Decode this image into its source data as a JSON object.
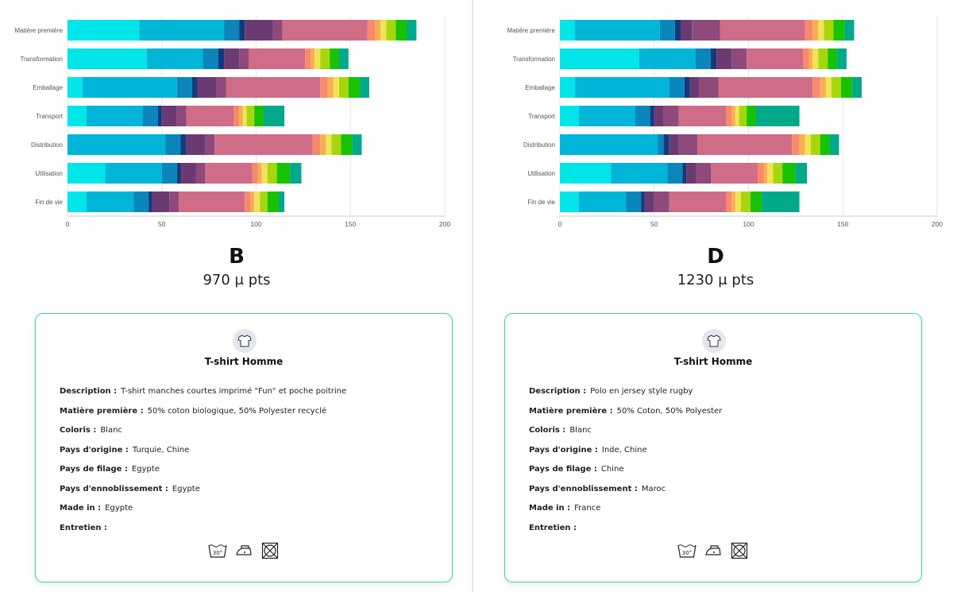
{
  "palette": [
    "#00e5e8",
    "#00b5d8",
    "#0a86bd",
    "#123b7a",
    "#6b3a73",
    "#8d4a7a",
    "#cf6c87",
    "#f7896d",
    "#f9ae54",
    "#f0e35a",
    "#a8d60d",
    "#18c200",
    "#00a98a"
  ],
  "chart_data": [
    {
      "type": "bar",
      "orientation": "horizontal",
      "stacked": true,
      "categories": [
        "Matière première",
        "Transformation",
        "Emballage",
        "Transport",
        "Distribution",
        "Utilisation",
        "Fin de vie"
      ],
      "xlim": [
        0,
        200
      ],
      "xticks": [
        0,
        50,
        100,
        150,
        200
      ],
      "grid": true,
      "segments": [
        [
          38,
          45,
          8,
          3,
          15,
          5,
          45,
          4,
          3,
          3,
          5,
          6,
          5
        ],
        [
          42,
          30,
          8,
          3,
          8,
          5,
          30,
          3,
          2,
          3,
          5,
          5,
          5
        ],
        [
          8,
          50,
          8,
          3,
          10,
          5,
          50,
          4,
          3,
          3,
          5,
          6,
          5
        ],
        [
          10,
          30,
          8,
          2,
          8,
          5,
          25,
          3,
          2,
          2,
          4,
          5,
          11
        ],
        [
          0,
          52,
          8,
          3,
          10,
          5,
          52,
          4,
          3,
          3,
          5,
          6,
          5
        ],
        [
          20,
          30,
          8,
          2,
          8,
          5,
          25,
          3,
          2,
          3,
          5,
          7,
          6
        ],
        [
          10,
          25,
          8,
          2,
          9,
          5,
          35,
          3,
          2,
          3,
          4,
          6,
          3
        ]
      ]
    },
    {
      "type": "bar",
      "orientation": "horizontal",
      "stacked": true,
      "categories": [
        "Matière première",
        "Transformation",
        "Emballage",
        "Transport",
        "Distribution",
        "Utilisation",
        "Fin de vie"
      ],
      "xlim": [
        0,
        200
      ],
      "xticks": [
        0,
        50,
        100,
        150,
        200
      ],
      "grid": true,
      "segments": [
        [
          8,
          45,
          8,
          3,
          6,
          15,
          45,
          4,
          3,
          3,
          5,
          6,
          5
        ],
        [
          42,
          30,
          8,
          3,
          8,
          8,
          30,
          3,
          2,
          3,
          5,
          5,
          5
        ],
        [
          8,
          50,
          8,
          3,
          5,
          10,
          50,
          4,
          3,
          3,
          5,
          6,
          5
        ],
        [
          10,
          30,
          8,
          2,
          5,
          8,
          25,
          3,
          2,
          2,
          4,
          5,
          23
        ],
        [
          0,
          52,
          3,
          3,
          5,
          10,
          50,
          4,
          3,
          3,
          5,
          5,
          5
        ],
        [
          27,
          30,
          8,
          2,
          5,
          8,
          25,
          3,
          2,
          3,
          5,
          7,
          6
        ],
        [
          10,
          25,
          8,
          2,
          5,
          8,
          30,
          3,
          2,
          3,
          5,
          6,
          20
        ]
      ]
    }
  ],
  "panels": [
    {
      "letter": "B",
      "score": "970 μ pts",
      "card": {
        "title": "T-shirt Homme",
        "rows": [
          {
            "label": "Description :",
            "value": "T-shirt manches courtes imprimé \"Fun\" et poche poitrine"
          },
          {
            "label": "Matière première :",
            "value": "50% coton biologique, 50% Polyester recyclé"
          },
          {
            "label": "Coloris :",
            "value": "Blanc"
          },
          {
            "label": "Pays d'origine :",
            "value": "Turquie, Chine"
          },
          {
            "label": "Pays de filage :",
            "value": "Egypte"
          },
          {
            "label": "Pays d'ennoblissement :",
            "value": "Egypte"
          },
          {
            "label": "Made in :",
            "value": "Egypte"
          },
          {
            "label": "Entretien :",
            "value": ""
          }
        ],
        "care_icons": [
          "wash-30-icon",
          "iron-low-icon",
          "no-tumble-dry-icon"
        ],
        "wash_temp": "30°"
      }
    },
    {
      "letter": "D",
      "score": "1230 μ pts",
      "card": {
        "title": "T-shirt Homme",
        "rows": [
          {
            "label": "Description :",
            "value": "Polo en jersey style rugby"
          },
          {
            "label": "Matière première :",
            "value": "50% Coton, 50% Polyester"
          },
          {
            "label": "Coloris :",
            "value": "Blanc"
          },
          {
            "label": "Pays d'origine :",
            "value": "Inde, Chine"
          },
          {
            "label": "Pays de filage :",
            "value": "Chine"
          },
          {
            "label": "Pays d'ennoblissement :",
            "value": "Maroc"
          },
          {
            "label": "Made in :",
            "value": "France"
          },
          {
            "label": "Entretien :",
            "value": ""
          }
        ],
        "care_icons": [
          "wash-30-icon",
          "iron-low-icon",
          "no-tumble-dry-icon"
        ],
        "wash_temp": "30°"
      }
    }
  ]
}
